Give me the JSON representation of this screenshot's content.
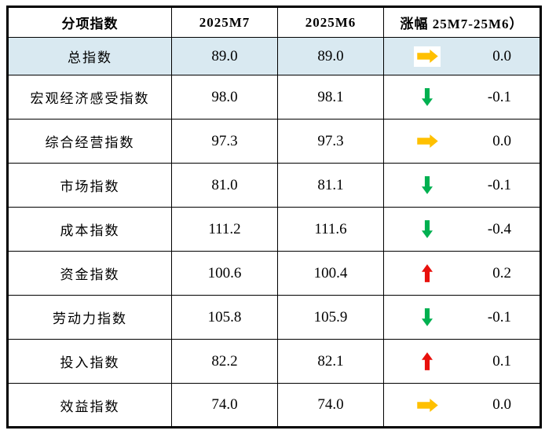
{
  "table": {
    "headers": [
      "分项指数",
      "2025M7",
      "2025M6",
      "涨幅 25M7-25M6）"
    ],
    "rows": [
      {
        "name": "总指数",
        "m7": "89.0",
        "m6": "89.0",
        "trend": "flat",
        "change": "0.0",
        "highlight": true
      },
      {
        "name": "宏观经济感受指数",
        "m7": "98.0",
        "m6": "98.1",
        "trend": "down",
        "change": "-0.1",
        "highlight": false
      },
      {
        "name": "综合经营指数",
        "m7": "97.3",
        "m6": "97.3",
        "trend": "flat",
        "change": "0.0",
        "highlight": false
      },
      {
        "name": "市场指数",
        "m7": "81.0",
        "m6": "81.1",
        "trend": "down",
        "change": "-0.1",
        "highlight": false
      },
      {
        "name": "成本指数",
        "m7": "111.2",
        "m6": "111.6",
        "trend": "down",
        "change": "-0.4",
        "highlight": false
      },
      {
        "name": "资金指数",
        "m7": "100.6",
        "m6": "100.4",
        "trend": "up",
        "change": "0.2",
        "highlight": false
      },
      {
        "name": "劳动力指数",
        "m7": "105.8",
        "m6": "105.9",
        "trend": "down",
        "change": "-0.1",
        "highlight": false
      },
      {
        "name": "投入指数",
        "m7": "82.2",
        "m6": "82.1",
        "trend": "up",
        "change": "0.1",
        "highlight": false
      },
      {
        "name": "效益指数",
        "m7": "74.0",
        "m6": "74.0",
        "trend": "flat",
        "change": "0.0",
        "highlight": false
      }
    ]
  },
  "icons": {
    "up": "up-arrow-icon",
    "down": "down-arrow-icon",
    "flat": "right-arrow-icon"
  },
  "colors": {
    "up_arrow": "#e8100c",
    "down_arrow": "#00b050",
    "flat_arrow": "#ffc000",
    "highlight_row": "#d9e9f1",
    "border": "#000000",
    "background": "#ffffff"
  },
  "chart_data": {
    "type": "table",
    "title": "分项指数涨幅表",
    "columns": [
      "分项指数",
      "2025M7",
      "2025M6",
      "涨幅 25M7-25M6）"
    ],
    "categories": [
      "总指数",
      "宏观经济感受指数",
      "综合经营指数",
      "市场指数",
      "成本指数",
      "资金指数",
      "劳动力指数",
      "投入指数",
      "效益指数"
    ],
    "series": [
      {
        "name": "2025M7",
        "values": [
          89.0,
          98.0,
          97.3,
          81.0,
          111.2,
          100.6,
          105.8,
          82.2,
          74.0
        ]
      },
      {
        "name": "2025M6",
        "values": [
          89.0,
          98.1,
          97.3,
          81.1,
          111.6,
          100.4,
          105.9,
          82.1,
          74.0
        ]
      },
      {
        "name": "涨幅 25M7-25M6",
        "values": [
          0.0,
          -0.1,
          0.0,
          -0.1,
          -0.4,
          0.2,
          -0.1,
          0.1,
          0.0
        ]
      }
    ],
    "trends": [
      "flat",
      "down",
      "flat",
      "down",
      "down",
      "up",
      "down",
      "up",
      "flat"
    ]
  }
}
